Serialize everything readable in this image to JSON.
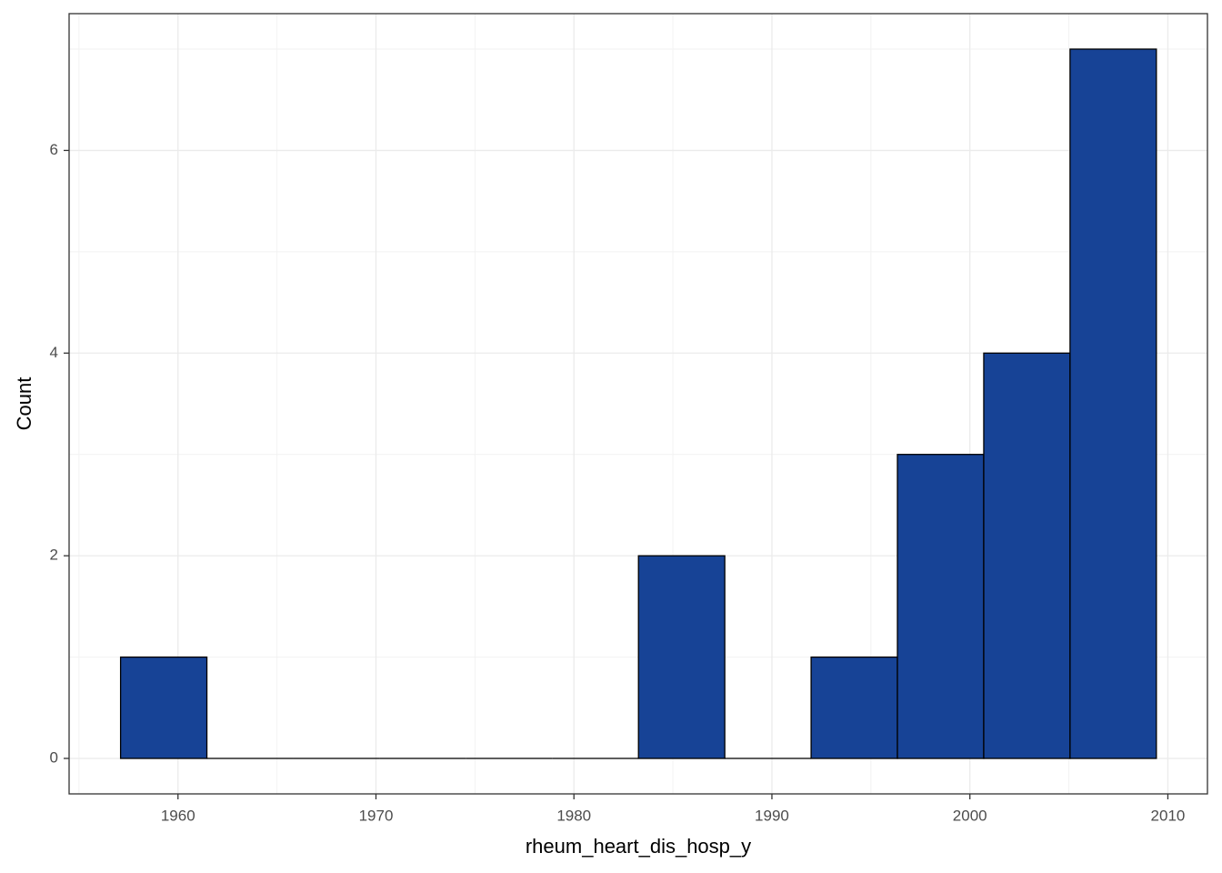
{
  "chart_data": {
    "type": "histogram",
    "x_label": "rheum_heart_dis_hosp_y",
    "y_label": "Count",
    "bins": [
      1957.1,
      1961.46,
      1965.82,
      1970.18,
      1974.54,
      1978.9,
      1983.26,
      1987.62,
      1991.98,
      1996.34,
      2000.7,
      2005.06,
      2009.42
    ],
    "values": [
      1,
      0,
      0,
      0,
      0,
      0,
      2,
      0,
      1,
      3,
      4,
      7
    ],
    "color": "#174396",
    "xlim": [
      1954.5,
      2012.0
    ],
    "ylim": [
      -0.35,
      7.35
    ],
    "xticks": [
      1960,
      1970,
      1980,
      1990,
      2000,
      2010
    ],
    "yticks": [
      0,
      2,
      4,
      6
    ],
    "xminor": [
      1955,
      1965,
      1975,
      1985,
      1995,
      2005
    ],
    "yminor": [
      1,
      3,
      5,
      7
    ],
    "grid": true
  }
}
